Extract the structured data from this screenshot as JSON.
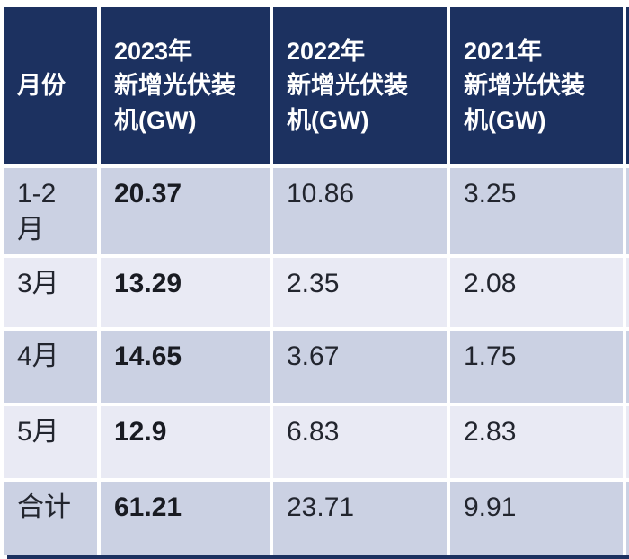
{
  "table": {
    "columns": [
      {
        "label": "月份"
      },
      {
        "label": "2023年\n新增光伏装\n机(GW)"
      },
      {
        "label": "2022年\n新增光伏装\n机(GW)"
      },
      {
        "label": "2021年\n新增光伏装\n机(GW)"
      }
    ],
    "rows": [
      {
        "month": "1-2\n月",
        "y2023": "20.37",
        "y2022": "10.86",
        "y2021": "3.25"
      },
      {
        "month": "3月",
        "y2023": "13.29",
        "y2022": "2.35",
        "y2021": "2.08"
      },
      {
        "month": "4月",
        "y2023": "14.65",
        "y2022": "3.67",
        "y2021": "1.75"
      },
      {
        "month": "5月",
        "y2023": "12.9",
        "y2022": "6.83",
        "y2021": "2.83"
      },
      {
        "month": "合计",
        "y2023": "61.21",
        "y2022": "23.71",
        "y2021": "9.91"
      }
    ]
  },
  "chart_data": {
    "type": "table",
    "title": "",
    "columns": [
      "月份",
      "2023年新增光伏装机(GW)",
      "2022年新增光伏装机(GW)",
      "2021年新增光伏装机(GW)"
    ],
    "rows": [
      [
        "1-2月",
        20.37,
        10.86,
        3.25
      ],
      [
        "3月",
        13.29,
        2.35,
        2.08
      ],
      [
        "4月",
        14.65,
        3.67,
        1.75
      ],
      [
        "5月",
        12.9,
        6.83,
        2.83
      ],
      [
        "合计",
        61.21,
        23.71,
        9.91
      ]
    ],
    "notes": "2023 column values rendered bold; rows banded in alternating lavender shades"
  },
  "colors": {
    "header_bg": "#1c3160",
    "header_text": "#ffffff",
    "band_dark": "#cbd1e3",
    "band_light": "#e9eaf4",
    "body_text": "#22252e",
    "gridline": "#ffffff"
  }
}
